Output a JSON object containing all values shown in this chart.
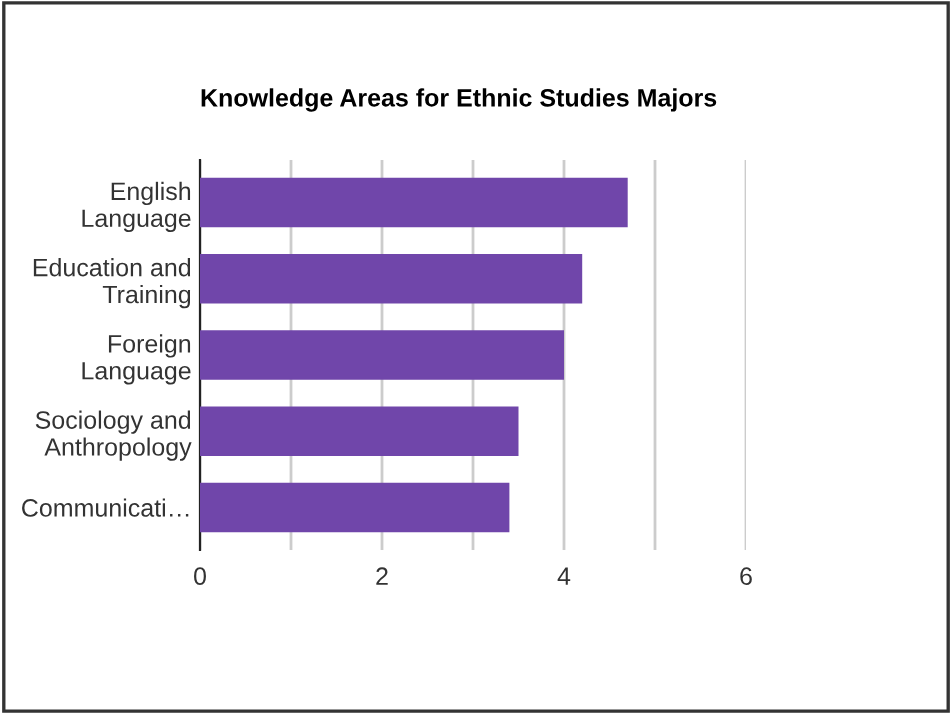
{
  "chart_data": {
    "type": "bar",
    "orientation": "horizontal",
    "title": "Knowledge Areas for Ethnic Studies Majors",
    "categories": [
      "English\nLanguage",
      "Education and\nTraining",
      "Foreign\nLanguage",
      "Sociology and\nAnthropology",
      "Communicati…"
    ],
    "values": [
      4.7,
      4.2,
      4.0,
      3.5,
      3.4
    ],
    "color": "#7046aa",
    "xlim": [
      0,
      6
    ],
    "xticks": [
      0,
      {
        "value": 1,
        "label": null
      },
      2,
      {
        "value": 3,
        "label": null
      },
      4,
      {
        "value": 5,
        "label": null
      },
      6
    ],
    "grid": "x",
    "legend": false
  }
}
